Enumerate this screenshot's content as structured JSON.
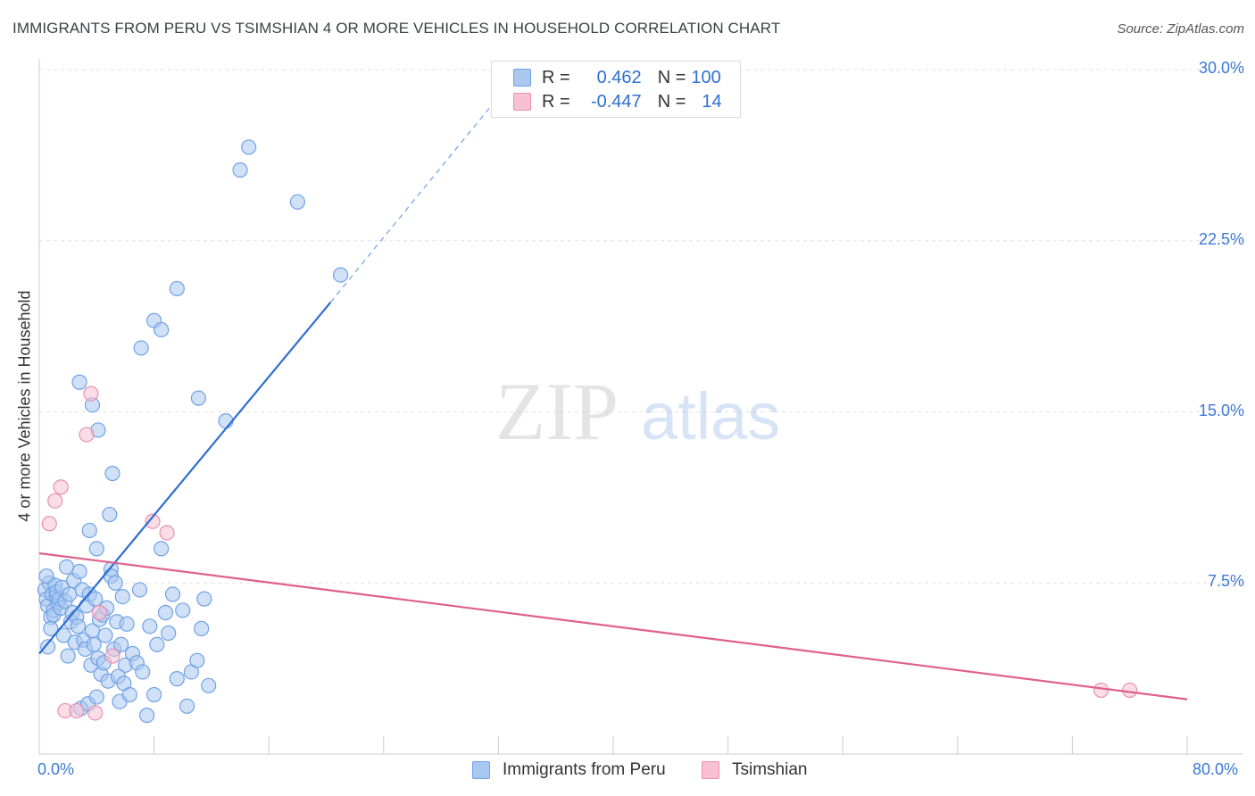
{
  "chart_data": {
    "type": "scatter",
    "title": "IMMIGRANTS FROM PERU VS TSIMSHIAN 4 OR MORE VEHICLES IN HOUSEHOLD CORRELATION CHART",
    "source": "Source: ZipAtlas.com",
    "ylabel": "4 or more Vehicles in Household",
    "xlabel": "",
    "xlim": [
      0,
      80
    ],
    "ylim": [
      0,
      30
    ],
    "x_tick_labels": [
      "0.0%",
      "80.0%"
    ],
    "y_tick_labels": [
      "7.5%",
      "15.0%",
      "22.5%",
      "30.0%"
    ],
    "y_ticks": [
      7.5,
      15.0,
      22.5,
      30.0
    ],
    "watermark": {
      "zip": "ZIP",
      "atlas": "atlas"
    },
    "legend": {
      "r_label": "R =",
      "n_label": "N =",
      "rows": [
        {
          "r": "0.462",
          "n": "100"
        },
        {
          "r": "-0.447",
          "n": "14"
        }
      ]
    },
    "series": [
      {
        "name": "Immigrants from Peru",
        "color": "#6fa1e6",
        "fill": "#a9c8f0",
        "line_color": "#2e6fd2",
        "trend": {
          "x0": 0.0,
          "y0": 4.4,
          "x1": 20.3,
          "y1": 19.8,
          "dash_to_x": 32.0,
          "dash_to_y": 28.8
        },
        "points": [
          [
            0.4,
            7.2
          ],
          [
            0.5,
            6.8
          ],
          [
            0.6,
            6.5
          ],
          [
            0.7,
            7.5
          ],
          [
            0.8,
            6.0
          ],
          [
            0.9,
            7.0
          ],
          [
            1.0,
            6.3
          ],
          [
            1.1,
            7.4
          ],
          [
            1.2,
            6.9
          ],
          [
            1.3,
            6.6
          ],
          [
            0.5,
            7.8
          ],
          [
            0.6,
            4.7
          ],
          [
            0.8,
            5.5
          ],
          [
            1.0,
            6.1
          ],
          [
            1.2,
            7.1
          ],
          [
            1.4,
            6.8
          ],
          [
            1.5,
            6.4
          ],
          [
            1.6,
            7.3
          ],
          [
            1.7,
            5.2
          ],
          [
            1.8,
            6.7
          ],
          [
            1.9,
            8.2
          ],
          [
            2.0,
            4.3
          ],
          [
            2.1,
            7.0
          ],
          [
            2.2,
            5.8
          ],
          [
            2.3,
            6.2
          ],
          [
            2.4,
            7.6
          ],
          [
            2.5,
            4.9
          ],
          [
            2.6,
            6.0
          ],
          [
            2.7,
            5.6
          ],
          [
            2.8,
            8.0
          ],
          [
            2.9,
            2.0
          ],
          [
            3.0,
            7.2
          ],
          [
            3.1,
            5.0
          ],
          [
            3.2,
            4.6
          ],
          [
            3.3,
            6.5
          ],
          [
            3.4,
            2.2
          ],
          [
            3.5,
            7.0
          ],
          [
            3.6,
            3.9
          ],
          [
            3.7,
            5.4
          ],
          [
            3.8,
            4.8
          ],
          [
            3.9,
            6.8
          ],
          [
            4.0,
            2.5
          ],
          [
            4.1,
            4.2
          ],
          [
            4.2,
            5.9
          ],
          [
            4.3,
            3.5
          ],
          [
            4.4,
            6.1
          ],
          [
            4.5,
            4.0
          ],
          [
            4.6,
            5.2
          ],
          [
            4.7,
            6.4
          ],
          [
            4.8,
            3.2
          ],
          [
            5.0,
            8.1
          ],
          [
            5.2,
            4.6
          ],
          [
            5.4,
            5.8
          ],
          [
            5.6,
            2.3
          ],
          [
            5.8,
            6.9
          ],
          [
            6.0,
            3.9
          ],
          [
            3.5,
            9.8
          ],
          [
            4.0,
            9.0
          ],
          [
            4.9,
            10.5
          ],
          [
            5.1,
            12.3
          ],
          [
            2.8,
            16.3
          ],
          [
            3.7,
            15.3
          ],
          [
            4.1,
            14.2
          ],
          [
            5.0,
            7.8
          ],
          [
            5.3,
            7.5
          ],
          [
            5.5,
            3.4
          ],
          [
            5.7,
            4.8
          ],
          [
            5.9,
            3.1
          ],
          [
            6.1,
            5.7
          ],
          [
            6.3,
            2.6
          ],
          [
            6.5,
            4.4
          ],
          [
            6.8,
            4.0
          ],
          [
            7.0,
            7.2
          ],
          [
            7.2,
            3.6
          ],
          [
            7.5,
            1.7
          ],
          [
            7.7,
            5.6
          ],
          [
            8.0,
            2.6
          ],
          [
            8.2,
            4.8
          ],
          [
            8.5,
            9.0
          ],
          [
            8.8,
            6.2
          ],
          [
            9.0,
            5.3
          ],
          [
            9.3,
            7.0
          ],
          [
            9.6,
            3.3
          ],
          [
            10.0,
            6.3
          ],
          [
            10.3,
            2.1
          ],
          [
            10.6,
            3.6
          ],
          [
            11.0,
            4.1
          ],
          [
            11.3,
            5.5
          ],
          [
            11.5,
            6.8
          ],
          [
            11.8,
            3.0
          ],
          [
            8.0,
            19.0
          ],
          [
            8.5,
            18.6
          ],
          [
            9.6,
            20.4
          ],
          [
            7.1,
            17.8
          ],
          [
            13.0,
            14.6
          ],
          [
            14.0,
            25.6
          ],
          [
            14.6,
            26.6
          ],
          [
            18.0,
            24.2
          ],
          [
            21.0,
            21.0
          ],
          [
            11.1,
            15.6
          ]
        ]
      },
      {
        "name": "Tsimshian",
        "color": "#e890ad",
        "fill": "#f7c1d3",
        "line_color": "#e0608c",
        "trend": {
          "x0": 0.0,
          "y0": 8.8,
          "x1": 80.0,
          "y1": 2.4
        },
        "points": [
          [
            0.7,
            10.1
          ],
          [
            1.1,
            11.1
          ],
          [
            1.5,
            11.7
          ],
          [
            1.8,
            1.9
          ],
          [
            2.6,
            1.9
          ],
          [
            3.3,
            14.0
          ],
          [
            3.6,
            15.8
          ],
          [
            3.9,
            1.8
          ],
          [
            4.2,
            6.2
          ],
          [
            5.1,
            4.3
          ],
          [
            7.9,
            10.2
          ],
          [
            8.9,
            9.7
          ],
          [
            74.0,
            2.8
          ],
          [
            76.0,
            2.8
          ]
        ]
      }
    ]
  }
}
